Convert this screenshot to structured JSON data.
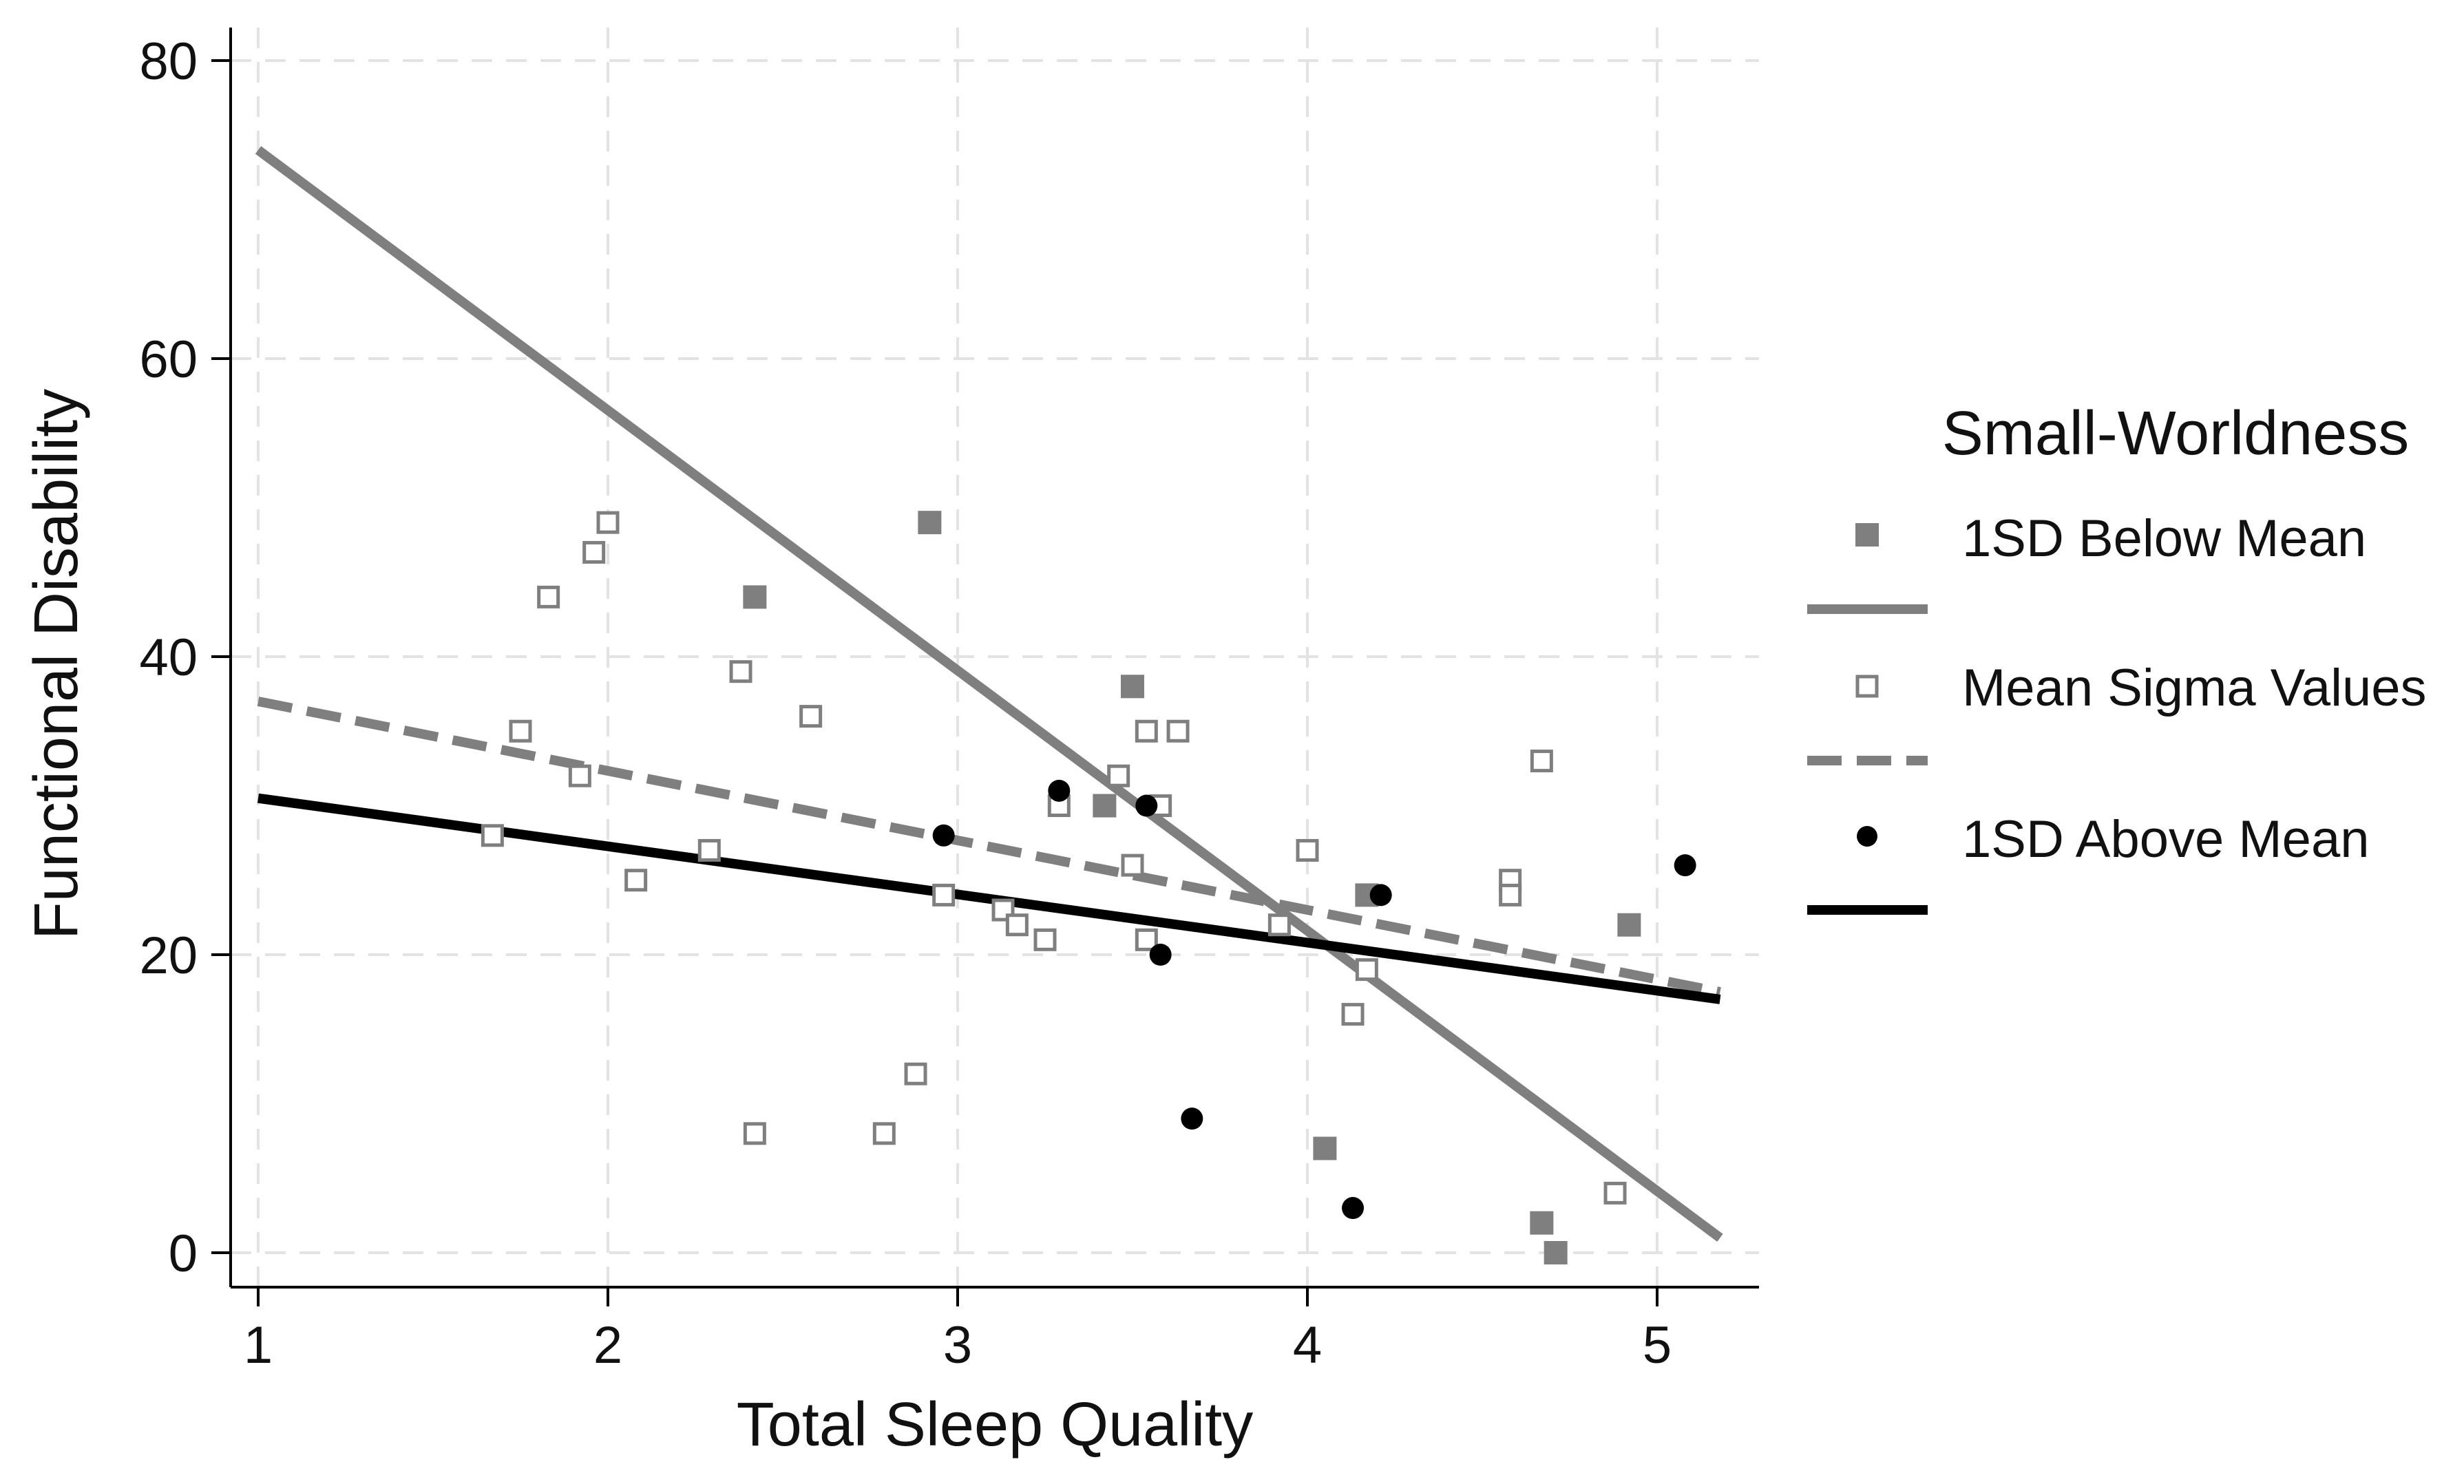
{
  "chart_data": {
    "type": "scatter",
    "xlabel": "Total Sleep Quality",
    "ylabel": "Functional Disability",
    "xlim": [
      1,
      5.2
    ],
    "ylim": [
      0,
      80
    ],
    "xticks": [
      1,
      2,
      3,
      4,
      5
    ],
    "yticks": [
      0,
      20,
      40,
      60,
      80
    ],
    "grid": true,
    "legend": {
      "title": "Small-Worldness",
      "position": "right"
    },
    "series": [
      {
        "name": "1SD Below Mean",
        "marker": "filled-square",
        "line_style": "solid",
        "color": "#7f7f7f",
        "points": [
          {
            "x": 2.92,
            "y": 49
          },
          {
            "x": 2.42,
            "y": 44
          },
          {
            "x": 3.5,
            "y": 38
          },
          {
            "x": 3.42,
            "y": 30
          },
          {
            "x": 4.17,
            "y": 24
          },
          {
            "x": 4.92,
            "y": 22
          },
          {
            "x": 4.05,
            "y": 7
          },
          {
            "x": 4.67,
            "y": 2
          },
          {
            "x": 4.71,
            "y": 0
          }
        ],
        "fit": {
          "x": [
            1,
            5.18
          ],
          "y": [
            74,
            1
          ]
        }
      },
      {
        "name": "Mean Sigma Values",
        "marker": "hollow-square",
        "line_style": "dashed",
        "color": "#7f7f7f",
        "points": [
          {
            "x": 2.0,
            "y": 49
          },
          {
            "x": 1.96,
            "y": 47
          },
          {
            "x": 1.83,
            "y": 44
          },
          {
            "x": 2.38,
            "y": 39
          },
          {
            "x": 2.58,
            "y": 36
          },
          {
            "x": 1.75,
            "y": 35
          },
          {
            "x": 1.92,
            "y": 32
          },
          {
            "x": 1.67,
            "y": 28
          },
          {
            "x": 2.29,
            "y": 27
          },
          {
            "x": 2.08,
            "y": 25
          },
          {
            "x": 2.96,
            "y": 24
          },
          {
            "x": 3.13,
            "y": 23
          },
          {
            "x": 3.17,
            "y": 22
          },
          {
            "x": 3.25,
            "y": 21
          },
          {
            "x": 3.29,
            "y": 30
          },
          {
            "x": 3.46,
            "y": 32
          },
          {
            "x": 3.54,
            "y": 35
          },
          {
            "x": 3.63,
            "y": 35
          },
          {
            "x": 3.58,
            "y": 30
          },
          {
            "x": 3.5,
            "y": 26
          },
          {
            "x": 3.54,
            "y": 21
          },
          {
            "x": 2.88,
            "y": 12
          },
          {
            "x": 2.79,
            "y": 8
          },
          {
            "x": 2.42,
            "y": 8
          },
          {
            "x": 3.92,
            "y": 22
          },
          {
            "x": 4.0,
            "y": 27
          },
          {
            "x": 4.17,
            "y": 19
          },
          {
            "x": 4.13,
            "y": 16
          },
          {
            "x": 4.58,
            "y": 25
          },
          {
            "x": 4.58,
            "y": 24
          },
          {
            "x": 4.67,
            "y": 33
          },
          {
            "x": 4.88,
            "y": 4
          }
        ],
        "fit": {
          "x": [
            1,
            5.18
          ],
          "y": [
            37,
            17.5
          ]
        }
      },
      {
        "name": "1SD Above Mean",
        "marker": "filled-circle",
        "line_style": "solid",
        "color": "#000000",
        "points": [
          {
            "x": 3.29,
            "y": 31
          },
          {
            "x": 3.54,
            "y": 30
          },
          {
            "x": 2.96,
            "y": 28
          },
          {
            "x": 4.21,
            "y": 24
          },
          {
            "x": 5.08,
            "y": 26
          },
          {
            "x": 3.58,
            "y": 20
          },
          {
            "x": 3.67,
            "y": 9
          },
          {
            "x": 4.13,
            "y": 3
          }
        ],
        "fit": {
          "x": [
            1,
            5.18
          ],
          "y": [
            30.5,
            17
          ]
        }
      }
    ]
  }
}
